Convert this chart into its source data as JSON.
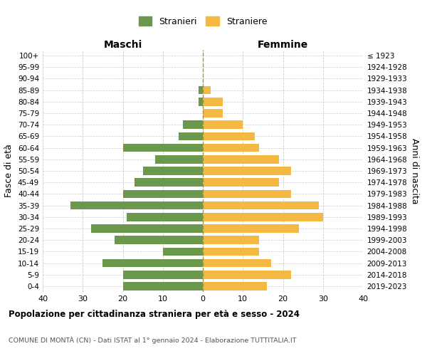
{
  "age_groups": [
    "100+",
    "95-99",
    "90-94",
    "85-89",
    "80-84",
    "75-79",
    "70-74",
    "65-69",
    "60-64",
    "55-59",
    "50-54",
    "45-49",
    "40-44",
    "35-39",
    "30-34",
    "25-29",
    "20-24",
    "15-19",
    "10-14",
    "5-9",
    "0-4"
  ],
  "birth_years": [
    "≤ 1923",
    "1924-1928",
    "1929-1933",
    "1934-1938",
    "1939-1943",
    "1944-1948",
    "1949-1953",
    "1954-1958",
    "1959-1963",
    "1964-1968",
    "1969-1973",
    "1974-1978",
    "1979-1983",
    "1984-1988",
    "1989-1993",
    "1994-1998",
    "1999-2003",
    "2004-2008",
    "2009-2013",
    "2014-2018",
    "2019-2023"
  ],
  "maschi": [
    0,
    0,
    0,
    1,
    1,
    0,
    5,
    6,
    20,
    12,
    15,
    17,
    20,
    33,
    19,
    28,
    22,
    10,
    25,
    20,
    20
  ],
  "femmine": [
    0,
    0,
    0,
    2,
    5,
    5,
    10,
    13,
    14,
    19,
    22,
    19,
    22,
    29,
    30,
    24,
    14,
    14,
    17,
    22,
    16
  ],
  "maschi_color": "#6a994e",
  "femmine_color": "#f4b942",
  "background_color": "#ffffff",
  "grid_color": "#cccccc",
  "title": "Popolazione per cittadinanza straniera per età e sesso - 2024",
  "subtitle": "COMUNE DI MONTÀ (CN) - Dati ISTAT al 1° gennaio 2024 - Elaborazione TUTTITALIA.IT",
  "xlabel_left": "Maschi",
  "xlabel_right": "Femmine",
  "ylabel_left": "Fasce di età",
  "ylabel_right": "Anni di nascita",
  "legend_stranieri": "Stranieri",
  "legend_straniere": "Straniere",
  "xlim": 40
}
